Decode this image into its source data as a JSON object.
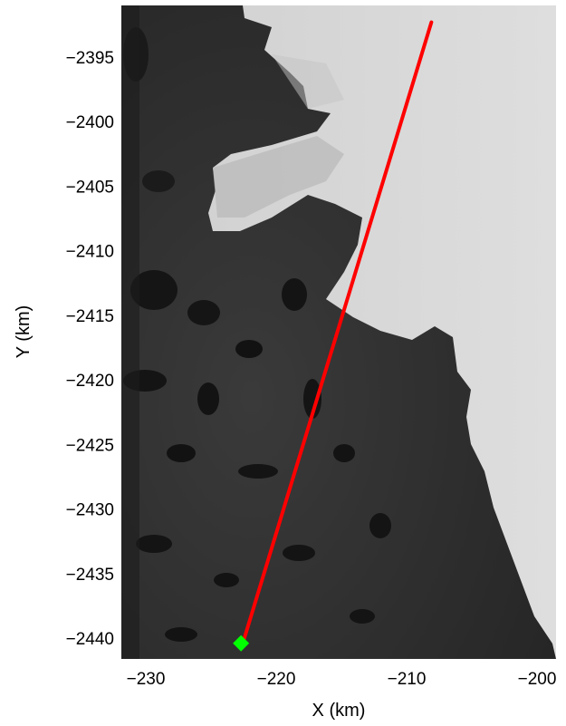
{
  "chart_data": {
    "type": "map",
    "xlabel": "X (km)",
    "ylabel": "Y (km)",
    "xlim": [
      -232,
      -198
    ],
    "ylim": [
      -2442,
      -2391
    ],
    "x_ticks": [
      -230,
      -220,
      -210,
      -200
    ],
    "y_ticks": [
      -2395,
      -2400,
      -2405,
      -2410,
      -2415,
      -2420,
      -2425,
      -2430,
      -2435,
      -2440
    ],
    "x_tick_labels": [
      "−230",
      "−220",
      "−210",
      "−200"
    ],
    "y_tick_labels": [
      "−2395",
      "−2400",
      "−2405",
      "−2410",
      "−2415",
      "−2420",
      "−2425",
      "−2430",
      "−2435",
      "−2440"
    ],
    "series": [
      {
        "type": "line",
        "color": "#ff0000",
        "x": [
          -222.5,
          -208.1
        ],
        "y": [
          -2440.2,
          -2392.3
        ]
      },
      {
        "type": "marker",
        "color": "#00ff00",
        "x": [
          -222.7
        ],
        "y": [
          -2440.4
        ]
      }
    ],
    "background": "grayscale satellite image: dark land (left), bright ice sheet (right)",
    "grid": false
  }
}
